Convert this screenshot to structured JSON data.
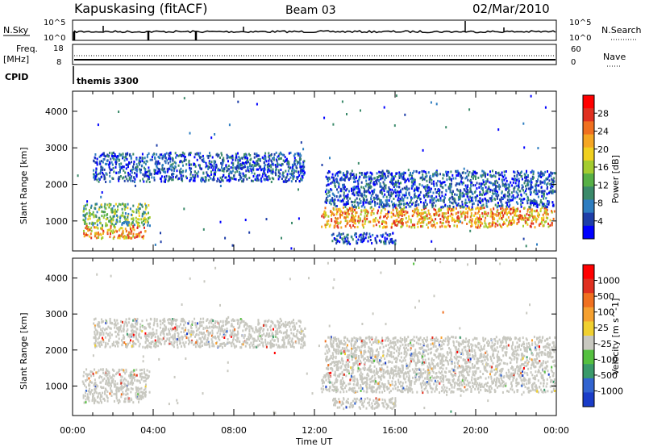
{
  "header": {
    "station": "Kapuskasing (fitACF)",
    "beam": "Beam 03",
    "date": "02/Mar/2010"
  },
  "strips": {
    "nsky_label": "N.Sky",
    "nsearch_label": "N.Search",
    "nsky_ticks": [
      "10^5",
      "10^0"
    ],
    "nsearch_ticks": [
      "10^5",
      "10^0"
    ],
    "freq_label": "Freq.",
    "freq_unit": "[MHz]",
    "freq_ticks": [
      "18",
      "8"
    ],
    "nave_label": "Nave",
    "nave_ticks": [
      "60",
      "0"
    ],
    "cpid_label": "CPID",
    "cpid_value": "themis 3300"
  },
  "chart_data": [
    {
      "type": "heatmap",
      "panel": "power",
      "ylabel": "Slant Range [km]",
      "xlabel": "",
      "y_ticks": [
        1000,
        2000,
        3000,
        4000
      ],
      "ylim": [
        180,
        4550
      ],
      "xlim": [
        0,
        24
      ],
      "colorbar": {
        "label": "Power [dB]",
        "ticks": [
          "28",
          "24",
          "20",
          "16",
          "12",
          "8",
          "4"
        ],
        "colors": [
          "#0000ff",
          "#1e3ea8",
          "#2e7dc0",
          "#3b8a6a",
          "#57b046",
          "#a4cc30",
          "#f0d020",
          "#f5a623",
          "#f07020",
          "#e03020",
          "#ff0000"
        ]
      },
      "scatter_regions": [
        {
          "t": [
            0.5,
            3.6
          ],
          "r": [
            550,
            900
          ],
          "level": "high"
        },
        {
          "t": [
            0.5,
            3.8
          ],
          "r": [
            900,
            1500
          ],
          "level": "mid"
        },
        {
          "t": [
            1.0,
            11.5
          ],
          "r": [
            2100,
            2900
          ],
          "level": "low"
        },
        {
          "t": [
            12.3,
            23.9
          ],
          "r": [
            850,
            1400
          ],
          "level": "high"
        },
        {
          "t": [
            12.5,
            23.9
          ],
          "r": [
            1400,
            2400
          ],
          "level": "low"
        },
        {
          "t": [
            12.8,
            16.0
          ],
          "r": [
            400,
            700
          ],
          "level": "low"
        }
      ]
    },
    {
      "type": "heatmap",
      "panel": "velocity",
      "ylabel": "Slant Range [km]",
      "xlabel": "Time UT",
      "x_ticks": [
        "00:00",
        "04:00",
        "08:00",
        "12:00",
        "16:00",
        "20:00",
        "00:00"
      ],
      "y_ticks": [
        1000,
        2000,
        3000,
        4000
      ],
      "ylim": [
        180,
        4550
      ],
      "xlim": [
        0,
        24
      ],
      "colorbar": {
        "label": "Velocity [m s^-1]",
        "ticks": [
          "1000",
          "500",
          "100",
          "25",
          "-25",
          "-100",
          "-500",
          "-1000"
        ],
        "colors": [
          "#1a3cc8",
          "#3264d0",
          "#3a9a6a",
          "#55c040",
          "#c8c8c0",
          "#f0d030",
          "#f5a030",
          "#f07020",
          "#e03020",
          "#ff0000"
        ]
      },
      "scatter_regions": [
        {
          "t": [
            0.5,
            3.6
          ],
          "r": [
            550,
            1100
          ],
          "level": "gray"
        },
        {
          "t": [
            0.5,
            3.8
          ],
          "r": [
            1100,
            1500
          ],
          "level": "gray"
        },
        {
          "t": [
            1.0,
            11.5
          ],
          "r": [
            2100,
            2900
          ],
          "level": "gray"
        },
        {
          "t": [
            12.3,
            23.9
          ],
          "r": [
            850,
            1400
          ],
          "level": "gray"
        },
        {
          "t": [
            12.5,
            23.9
          ],
          "r": [
            1400,
            2400
          ],
          "level": "gray"
        },
        {
          "t": [
            12.8,
            16.0
          ],
          "r": [
            400,
            700
          ],
          "level": "gray"
        }
      ]
    }
  ]
}
